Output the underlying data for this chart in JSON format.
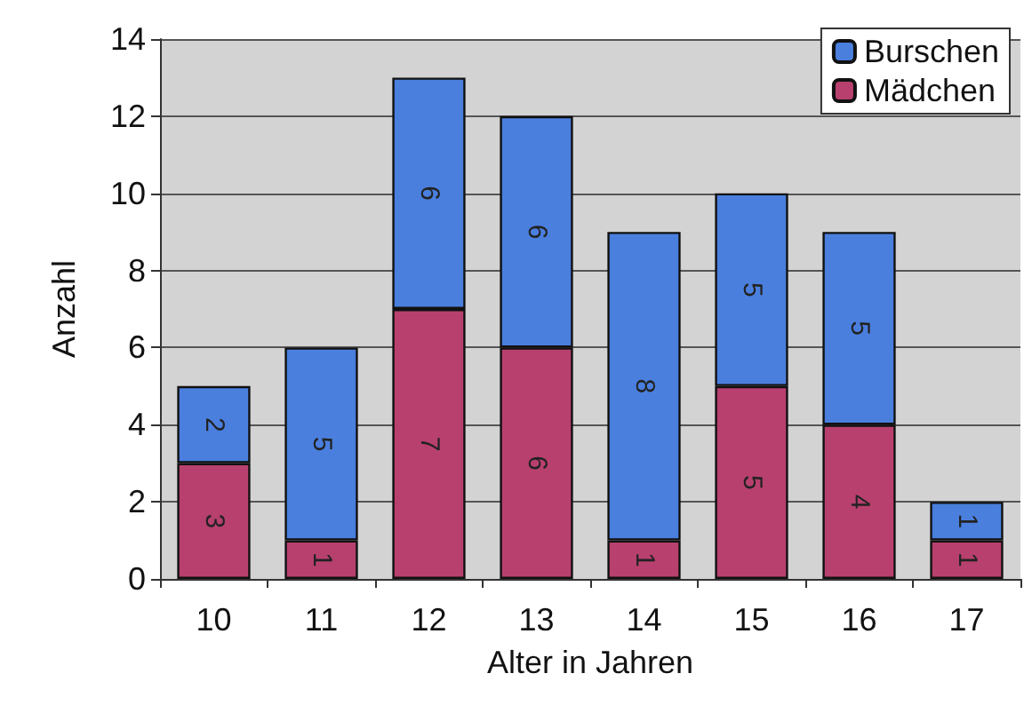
{
  "chart_data": {
    "type": "bar",
    "stacked": true,
    "xlabel": "Alter in Jahren",
    "ylabel": "Anzahl",
    "categories": [
      "10",
      "11",
      "12",
      "13",
      "14",
      "15",
      "16",
      "17"
    ],
    "series": [
      {
        "name": "Mädchen",
        "color": "#b8406e",
        "values": [
          3,
          1,
          7,
          6,
          1,
          5,
          4,
          1
        ]
      },
      {
        "name": "Burschen",
        "color": "#4a7fde",
        "values": [
          2,
          5,
          6,
          6,
          8,
          5,
          5,
          1
        ]
      }
    ],
    "ylim": [
      0,
      14
    ],
    "yticks": [
      0,
      2,
      4,
      6,
      8,
      10,
      12,
      14
    ],
    "grid": "y",
    "legend": "top right",
    "data_labels": true
  }
}
